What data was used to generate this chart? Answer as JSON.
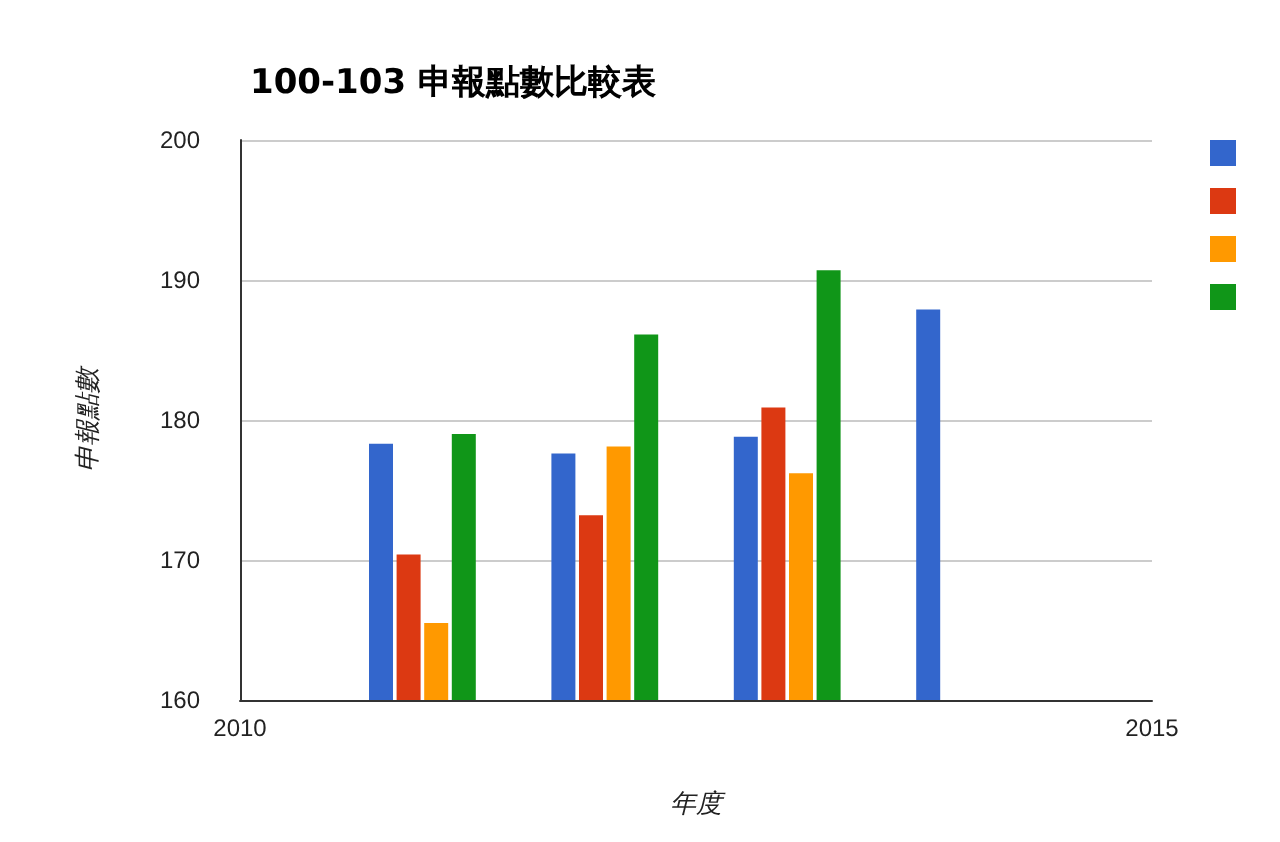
{
  "chart_data": {
    "type": "bar",
    "title": "100-103 申報點數比較表",
    "xlabel": "年度",
    "ylabel": "申報點數",
    "x": [
      2011,
      2012,
      2013,
      2014
    ],
    "series": [
      {
        "color": "#3366cc",
        "values": [
          178.3,
          177.6,
          178.8,
          187.9
        ]
      },
      {
        "color": "#dc3912",
        "values": [
          170.4,
          173.2,
          180.9,
          null
        ]
      },
      {
        "color": "#ff9900",
        "values": [
          165.5,
          178.1,
          176.2,
          null
        ]
      },
      {
        "color": "#109618",
        "values": [
          179.0,
          186.1,
          190.7,
          null
        ]
      }
    ],
    "xlim": [
      2010,
      2015
    ],
    "xticks": [
      2010,
      2015
    ],
    "ylim": [
      160,
      200
    ],
    "yticks": [
      160,
      170,
      180,
      190,
      200
    ],
    "grid": "y"
  }
}
